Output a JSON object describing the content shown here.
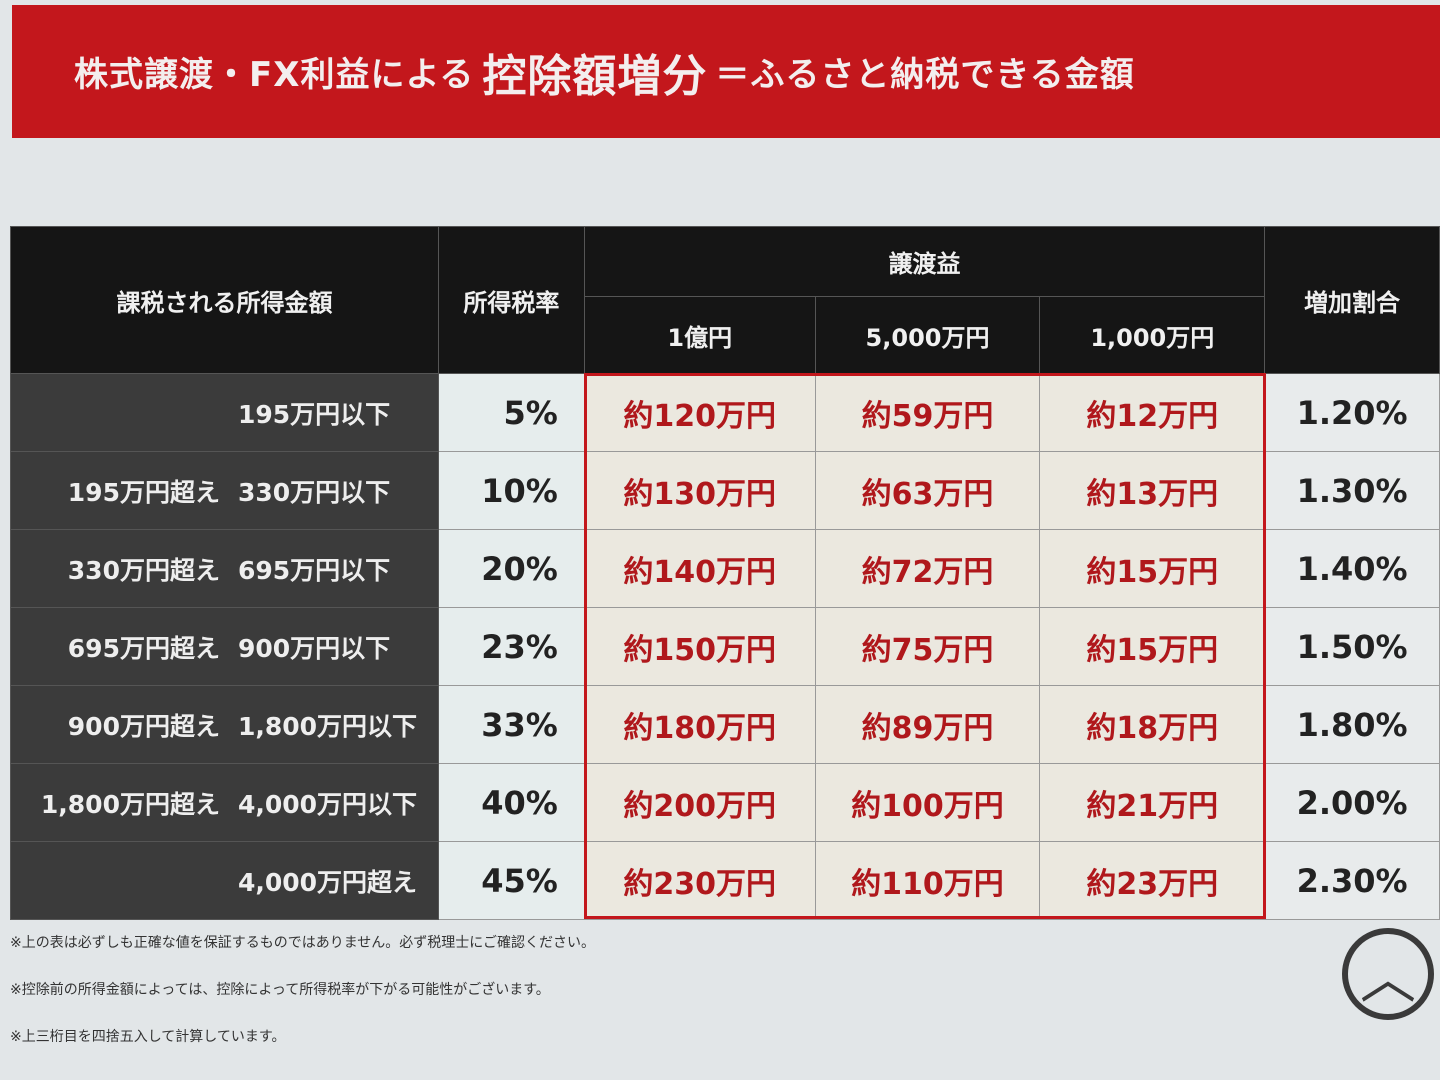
{
  "title": {
    "pre": "株式譲渡・FX利益による",
    "big": "控除額増分",
    "post": "＝ふるさと納税できる金額"
  },
  "headers": {
    "income": "課税される所得金額",
    "rate": "所得税率",
    "gain": "譲渡益",
    "g1": "1億円",
    "g2": "5,000万円",
    "g3": "1,000万円",
    "increase": "増加割合"
  },
  "rows": [
    {
      "from": "",
      "to": "195万円以下",
      "rate": "5%",
      "v": [
        "約120万円",
        "約59万円",
        "約12万円"
      ],
      "inc": "1.20%"
    },
    {
      "from": "195万円超え",
      "to": "330万円以下",
      "rate": "10%",
      "v": [
        "約130万円",
        "約63万円",
        "約13万円"
      ],
      "inc": "1.30%"
    },
    {
      "from": "330万円超え",
      "to": "695万円以下",
      "rate": "20%",
      "v": [
        "約140万円",
        "約72万円",
        "約15万円"
      ],
      "inc": "1.40%"
    },
    {
      "from": "695万円超え",
      "to": "900万円以下",
      "rate": "23%",
      "v": [
        "約150万円",
        "約75万円",
        "約15万円"
      ],
      "inc": "1.50%"
    },
    {
      "from": "900万円超え",
      "to": "1,800万円以下",
      "rate": "33%",
      "v": [
        "約180万円",
        "約89万円",
        "約18万円"
      ],
      "inc": "1.80%"
    },
    {
      "from": "1,800万円超え",
      "to": "4,000万円以下",
      "rate": "40%",
      "v": [
        "約200万円",
        "約100万円",
        "約21万円"
      ],
      "inc": "2.00%"
    },
    {
      "from": "",
      "to": "4,000万円超え",
      "rate": "45%",
      "v": [
        "約230万円",
        "約110万円",
        "約23万円"
      ],
      "inc": "2.30%"
    }
  ],
  "notes": [
    "※上の表は必ずしも正確な値を保証するものではありません。必ず税理士にご確認ください。",
    "※控除前の所得金額によっては、控除によって所得税率が下がる可能性がございます。",
    "※上三桁目を四捨五入して計算しています。"
  ],
  "scroll_top_icon": "chevron-up-icon"
}
